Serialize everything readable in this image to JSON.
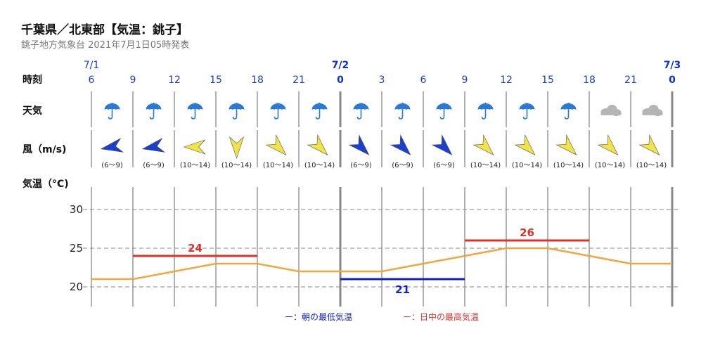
{
  "header": {
    "title": "千葉県／北東部【気温：銚子】",
    "subtitle": "銚子地方気象台 2021年7月1日05時発表"
  },
  "row_labels": {
    "time": "時刻",
    "weather": "天気",
    "wind": "風（m/s)",
    "temp": "気温（°C)"
  },
  "dates": [
    {
      "label": "7/1",
      "index": 0,
      "bold": false
    },
    {
      "label": "7/2",
      "index": 6,
      "bold": true
    },
    {
      "label": "7/3",
      "index": 14,
      "bold": true
    }
  ],
  "hours": [
    "6",
    "9",
    "12",
    "15",
    "18",
    "21",
    "0",
    "3",
    "6",
    "9",
    "12",
    "15",
    "18",
    "21",
    "0"
  ],
  "weather": [
    "rain-umbrella-icon",
    "rain-umbrella-icon",
    "rain-umbrella-icon",
    "rain-umbrella-icon",
    "rain-umbrella-icon",
    "rain-umbrella-icon",
    "rain-umbrella-icon",
    "rain-umbrella-icon",
    "rain-umbrella-icon",
    "rain-umbrella-icon",
    "rain-umbrella-icon",
    "rain-umbrella-icon",
    "cloud-icon",
    "cloud-icon"
  ],
  "wind": [
    {
      "range": "(6～9)",
      "level": "low",
      "direction": "ENE"
    },
    {
      "range": "(6～9)",
      "level": "low",
      "direction": "ENE"
    },
    {
      "range": "(10～14)",
      "level": "high",
      "direction": "E"
    },
    {
      "range": "(10～14)",
      "level": "high",
      "direction": "S"
    },
    {
      "range": "(10～14)",
      "level": "high",
      "direction": "SW"
    },
    {
      "range": "(10～14)",
      "level": "high",
      "direction": "SW"
    },
    {
      "range": "(6～9)",
      "level": "low",
      "direction": "SW"
    },
    {
      "range": "(6～9)",
      "level": "low",
      "direction": "SW"
    },
    {
      "range": "(6～9)",
      "level": "low",
      "direction": "SW"
    },
    {
      "range": "(10～14)",
      "level": "high",
      "direction": "SW"
    },
    {
      "range": "(10～14)",
      "level": "high",
      "direction": "SW"
    },
    {
      "range": "(10～14)",
      "level": "high",
      "direction": "SW"
    },
    {
      "range": "(10～14)",
      "level": "high",
      "direction": "SW"
    },
    {
      "range": "(10～14)",
      "level": "high",
      "direction": "SW"
    }
  ],
  "colors": {
    "low_wind": "#1b3fcf",
    "high_wind": "#f3e34a",
    "temp_line": "#f0a740",
    "max_temp": "#e0302a",
    "min_temp": "#1020d0",
    "umbrella": "#2a78d8",
    "cloud": "#b5b5b5"
  },
  "chart_data": {
    "type": "line",
    "x": [
      "7/1 6",
      "9",
      "12",
      "15",
      "18",
      "21",
      "7/2 0",
      "3",
      "6",
      "9",
      "12",
      "15",
      "18",
      "21",
      "7/3 0"
    ],
    "series": [
      {
        "name": "",
        "values": [
          21,
          21,
          22,
          23,
          23,
          22,
          22,
          22,
          23,
          24,
          25,
          25,
          24,
          23,
          23
        ]
      }
    ],
    "max_temps": [
      {
        "value": 24,
        "label": "24",
        "from": 1,
        "to": 4
      },
      {
        "value": 26,
        "label": "26",
        "from": 9,
        "to": 12
      }
    ],
    "min_temps": [
      {
        "value": 21,
        "label": "21",
        "from": 6,
        "to": 9
      }
    ],
    "yticks": [
      20,
      25,
      30
    ],
    "ylim": [
      18,
      30
    ]
  },
  "legend": {
    "min_label": "ー：朝の最低気温",
    "max_label": "ー：日中の最高気温"
  }
}
